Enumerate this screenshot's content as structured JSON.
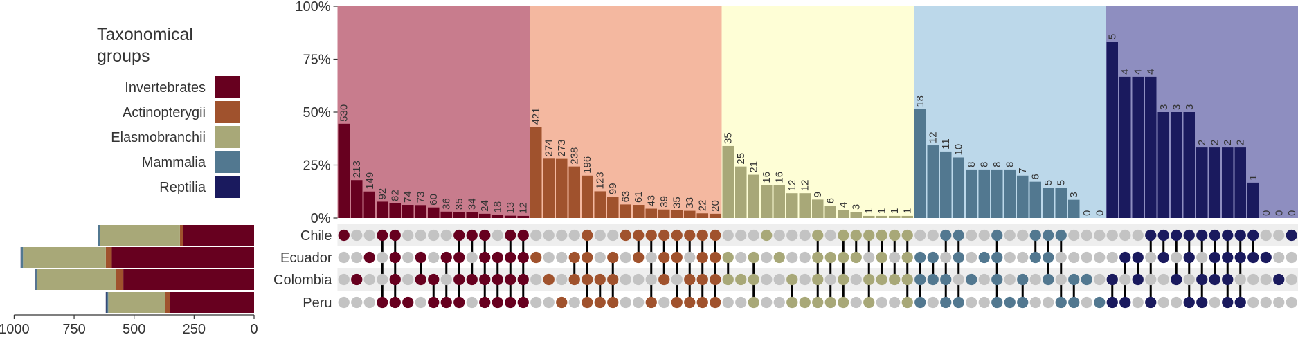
{
  "legend": {
    "title_lines": [
      "Taxonomical",
      "groups"
    ],
    "items": [
      {
        "label": "Invertebrates",
        "color": "#67001f"
      },
      {
        "label": "Actinopterygii",
        "color": "#a0522d"
      },
      {
        "label": "Elasmobranchii",
        "color": "#a8a878"
      },
      {
        "label": "Mammalia",
        "color": "#527890"
      },
      {
        "label": "Reptilia",
        "color": "#1a1a5e"
      }
    ]
  },
  "chart_data": {
    "type": "bar",
    "title": "",
    "sets": [
      "Chile",
      "Ecuador",
      "Colombia",
      "Peru"
    ],
    "groups": [
      {
        "name": "Invertebrates",
        "color": "#67001f",
        "bg": "#c87c8d"
      },
      {
        "name": "Actinopterygii",
        "color": "#a0522d",
        "bg": "#f4b8a0"
      },
      {
        "name": "Elasmobranchii",
        "color": "#a8a878",
        "bg": "#fefed6"
      },
      {
        "name": "Mammalia",
        "color": "#527890",
        "bg": "#bcd8ea"
      },
      {
        "name": "Reptilia",
        "color": "#1a1a5e",
        "bg": "#8e8ec0"
      }
    ],
    "upset": {
      "ylim": [
        0,
        100
      ],
      "y_ticks": [
        "0%",
        "25%",
        "50%",
        "75%",
        "100%"
      ],
      "columns": [
        {
          "g": 0,
          "v": 44.5,
          "label": "530",
          "members": [
            0
          ]
        },
        {
          "g": 0,
          "v": 17.9,
          "label": "213",
          "members": [
            2
          ]
        },
        {
          "g": 0,
          "v": 12.5,
          "label": "149",
          "members": [
            1
          ]
        },
        {
          "g": 0,
          "v": 7.7,
          "label": "92",
          "members": [
            0,
            3
          ]
        },
        {
          "g": 0,
          "v": 6.9,
          "label": "82",
          "members": [
            0,
            1,
            2,
            3
          ]
        },
        {
          "g": 0,
          "v": 6.2,
          "label": "74",
          "members": [
            3
          ]
        },
        {
          "g": 0,
          "v": 6.1,
          "label": "73",
          "members": [
            1,
            2
          ]
        },
        {
          "g": 0,
          "v": 5.0,
          "label": "60",
          "members": [
            2,
            3
          ]
        },
        {
          "g": 0,
          "v": 3.0,
          "label": "36",
          "members": [
            1,
            3
          ]
        },
        {
          "g": 0,
          "v": 2.9,
          "label": "35",
          "members": [
            0,
            1,
            2,
            3
          ]
        },
        {
          "g": 0,
          "v": 2.9,
          "label": "34",
          "members": [
            0,
            2
          ]
        },
        {
          "g": 0,
          "v": 2.0,
          "label": "24",
          "members": [
            0,
            1,
            2,
            3
          ]
        },
        {
          "g": 0,
          "v": 1.5,
          "label": "18",
          "members": [
            1,
            2,
            3
          ]
        },
        {
          "g": 0,
          "v": 1.1,
          "label": "13",
          "members": [
            0,
            1,
            2,
            3
          ]
        },
        {
          "g": 0,
          "v": 1.0,
          "label": "12",
          "members": [
            0,
            1,
            2,
            3
          ]
        },
        {
          "g": 1,
          "v": 43.0,
          "label": "421",
          "members": [
            1
          ]
        },
        {
          "g": 1,
          "v": 28.0,
          "label": "274",
          "members": [
            2
          ]
        },
        {
          "g": 1,
          "v": 27.9,
          "label": "273",
          "members": [
            3
          ]
        },
        {
          "g": 1,
          "v": 24.3,
          "label": "238",
          "members": [
            1,
            2
          ]
        },
        {
          "g": 1,
          "v": 20.0,
          "label": "196",
          "members": [
            0,
            1,
            2,
            3
          ]
        },
        {
          "g": 1,
          "v": 12.6,
          "label": "123",
          "members": [
            2,
            3
          ]
        },
        {
          "g": 1,
          "v": 10.1,
          "label": "99",
          "members": [
            1,
            2,
            3
          ]
        },
        {
          "g": 1,
          "v": 6.4,
          "label": "63",
          "members": [
            0
          ]
        },
        {
          "g": 1,
          "v": 6.2,
          "label": "61",
          "members": [
            0,
            1
          ]
        },
        {
          "g": 1,
          "v": 4.4,
          "label": "43",
          "members": [
            0,
            3
          ]
        },
        {
          "g": 1,
          "v": 4.0,
          "label": "39",
          "members": [
            0,
            1,
            2
          ]
        },
        {
          "g": 1,
          "v": 3.6,
          "label": "35",
          "members": [
            0,
            1,
            3
          ]
        },
        {
          "g": 1,
          "v": 3.4,
          "label": "33",
          "members": [
            0,
            2,
            3
          ]
        },
        {
          "g": 1,
          "v": 2.2,
          "label": "22",
          "members": [
            0,
            1,
            2,
            3
          ]
        },
        {
          "g": 1,
          "v": 2.0,
          "label": "20",
          "members": [
            0,
            1,
            2,
            3
          ]
        },
        {
          "g": 2,
          "v": 34.0,
          "label": "35",
          "members": [
            1,
            2
          ]
        },
        {
          "g": 2,
          "v": 24.3,
          "label": "25",
          "members": [
            2
          ]
        },
        {
          "g": 2,
          "v": 20.4,
          "label": "21",
          "members": [
            1,
            2,
            3
          ]
        },
        {
          "g": 2,
          "v": 15.5,
          "label": "16",
          "members": [
            0
          ]
        },
        {
          "g": 2,
          "v": 15.5,
          "label": "16",
          "members": [
            1
          ]
        },
        {
          "g": 2,
          "v": 11.7,
          "label": "12",
          "members": [
            2,
            3
          ]
        },
        {
          "g": 2,
          "v": 11.7,
          "label": "12",
          "members": [
            3
          ]
        },
        {
          "g": 2,
          "v": 8.7,
          "label": "9",
          "members": [
            0,
            1,
            2,
            3
          ]
        },
        {
          "g": 2,
          "v": 5.8,
          "label": "6",
          "members": [
            1,
            3
          ]
        },
        {
          "g": 2,
          "v": 3.9,
          "label": "4",
          "members": [
            0,
            1,
            2,
            3
          ]
        },
        {
          "g": 2,
          "v": 2.9,
          "label": "3",
          "members": [
            0,
            1
          ]
        },
        {
          "g": 2,
          "v": 1.0,
          "label": "1",
          "members": [
            0,
            2,
            3
          ]
        },
        {
          "g": 2,
          "v": 1.0,
          "label": "1",
          "members": [
            0,
            1,
            2
          ]
        },
        {
          "g": 2,
          "v": 1.0,
          "label": "1",
          "members": [
            0,
            2
          ]
        },
        {
          "g": 2,
          "v": 1.0,
          "label": "1",
          "members": [
            0,
            1,
            2,
            3
          ]
        },
        {
          "g": 3,
          "v": 51.4,
          "label": "18",
          "members": [
            1,
            2,
            3
          ]
        },
        {
          "g": 3,
          "v": 34.3,
          "label": "12",
          "members": [
            1,
            2
          ]
        },
        {
          "g": 3,
          "v": 31.4,
          "label": "11",
          "members": [
            0,
            2,
            3
          ]
        },
        {
          "g": 3,
          "v": 28.6,
          "label": "10",
          "members": [
            0,
            1,
            3
          ]
        },
        {
          "g": 3,
          "v": 22.9,
          "label": "8",
          "members": [
            2
          ]
        },
        {
          "g": 3,
          "v": 22.9,
          "label": "8",
          "members": [
            1
          ]
        },
        {
          "g": 3,
          "v": 22.9,
          "label": "8",
          "members": [
            0,
            1,
            2,
            3
          ]
        },
        {
          "g": 3,
          "v": 22.9,
          "label": "8",
          "members": [
            3
          ]
        },
        {
          "g": 3,
          "v": 20.0,
          "label": "7",
          "members": [
            2,
            3
          ]
        },
        {
          "g": 3,
          "v": 17.1,
          "label": "6",
          "members": [
            0,
            1
          ]
        },
        {
          "g": 3,
          "v": 14.3,
          "label": "5",
          "members": [
            0,
            1,
            2
          ]
        },
        {
          "g": 3,
          "v": 14.3,
          "label": "5",
          "members": [
            0,
            3
          ]
        },
        {
          "g": 3,
          "v": 8.6,
          "label": "3",
          "members": [
            2,
            3
          ]
        },
        {
          "g": 3,
          "v": 0,
          "label": "0",
          "members": [
            2
          ]
        },
        {
          "g": 3,
          "v": 0,
          "label": "0",
          "members": [
            3
          ]
        },
        {
          "g": 4,
          "v": 83.3,
          "label": "5",
          "members": [
            2,
            3
          ]
        },
        {
          "g": 4,
          "v": 66.7,
          "label": "4",
          "members": [
            1,
            3
          ]
        },
        {
          "g": 4,
          "v": 66.7,
          "label": "4",
          "members": [
            1,
            2
          ]
        },
        {
          "g": 4,
          "v": 66.7,
          "label": "4",
          "members": [
            0,
            3
          ]
        },
        {
          "g": 4,
          "v": 50.0,
          "label": "3",
          "members": [
            0,
            1
          ]
        },
        {
          "g": 4,
          "v": 50.0,
          "label": "3",
          "members": [
            0,
            2
          ]
        },
        {
          "g": 4,
          "v": 50.0,
          "label": "3",
          "members": [
            0,
            1,
            3
          ]
        },
        {
          "g": 4,
          "v": 33.3,
          "label": "2",
          "members": [
            0,
            2,
            3
          ]
        },
        {
          "g": 4,
          "v": 33.3,
          "label": "2",
          "members": [
            0,
            1,
            2
          ]
        },
        {
          "g": 4,
          "v": 33.3,
          "label": "2",
          "members": [
            0,
            1,
            2,
            3
          ]
        },
        {
          "g": 4,
          "v": 33.3,
          "label": "2",
          "members": [
            0,
            1,
            3
          ]
        },
        {
          "g": 4,
          "v": 16.7,
          "label": "1",
          "members": [
            0,
            1
          ]
        },
        {
          "g": 4,
          "v": 0,
          "label": "0",
          "members": [
            1
          ]
        },
        {
          "g": 4,
          "v": 0,
          "label": "0",
          "members": [
            2
          ]
        },
        {
          "g": 4,
          "v": 0,
          "label": "0",
          "members": [
            0
          ]
        }
      ]
    },
    "set_sizes": {
      "xlim": [
        1000,
        0
      ],
      "x_ticks": [
        "1000",
        "750",
        "500",
        "250",
        "0"
      ],
      "rows": [
        {
          "set": "Chile",
          "segments": [
            {
              "group": "Invertebrates",
              "value": 295
            },
            {
              "group": "Actinopterygii",
              "value": 14
            },
            {
              "group": "Elasmobranchii",
              "value": 333
            },
            {
              "group": "Mammalia",
              "value": 8
            },
            {
              "group": "Reptilia",
              "value": 2
            }
          ]
        },
        {
          "set": "Ecuador",
          "segments": [
            {
              "group": "Invertebrates",
              "value": 593
            },
            {
              "group": "Actinopterygii",
              "value": 25
            },
            {
              "group": "Elasmobranchii",
              "value": 345
            },
            {
              "group": "Mammalia",
              "value": 8
            },
            {
              "group": "Reptilia",
              "value": 2
            }
          ]
        },
        {
          "set": "Colombia",
          "segments": [
            {
              "group": "Invertebrates",
              "value": 545
            },
            {
              "group": "Actinopterygii",
              "value": 30
            },
            {
              "group": "Elasmobranchii",
              "value": 328
            },
            {
              "group": "Mammalia",
              "value": 8
            },
            {
              "group": "Reptilia",
              "value": 2
            }
          ]
        },
        {
          "set": "Peru",
          "segments": [
            {
              "group": "Invertebrates",
              "value": 350
            },
            {
              "group": "Actinopterygii",
              "value": 20
            },
            {
              "group": "Elasmobranchii",
              "value": 238
            },
            {
              "group": "Mammalia",
              "value": 8
            },
            {
              "group": "Reptilia",
              "value": 2
            }
          ]
        }
      ]
    }
  }
}
